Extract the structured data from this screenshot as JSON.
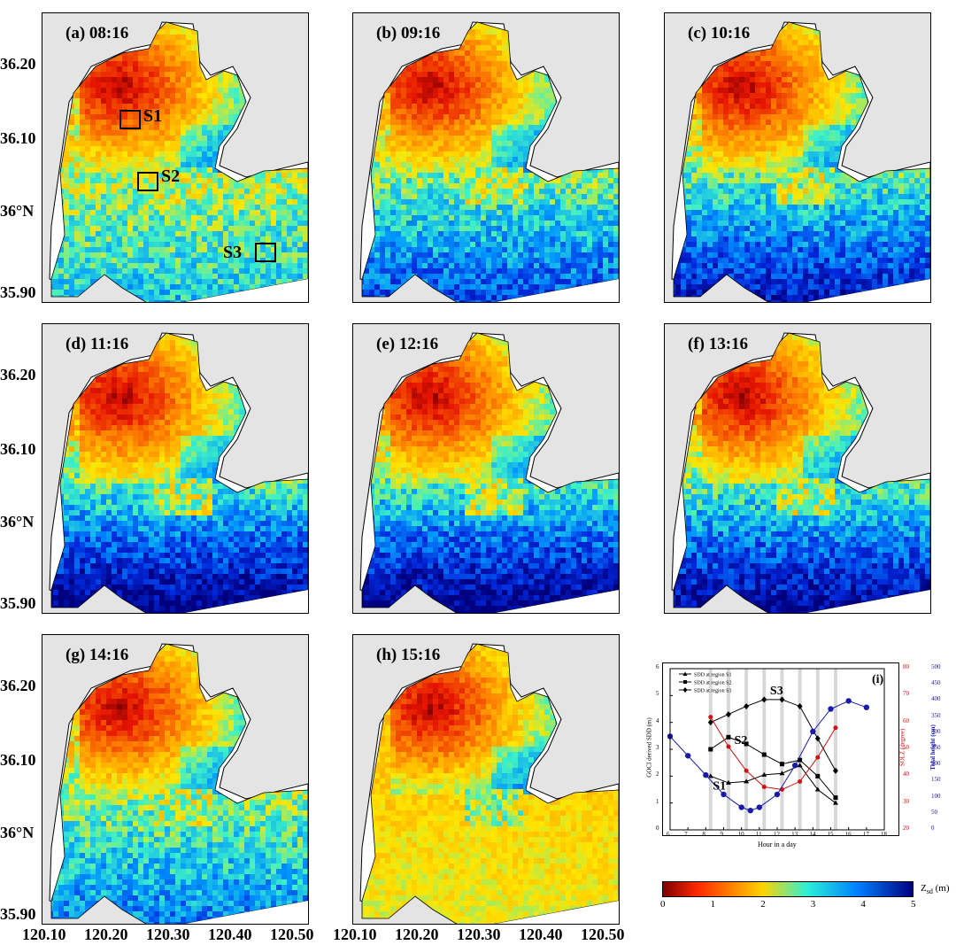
{
  "map_panels": [
    {
      "label": "(a) 08:16",
      "level": 0.3
    },
    {
      "label": "(b) 09:16",
      "level": 0.55
    },
    {
      "label": "(c) 10:16",
      "level": 0.7
    },
    {
      "label": "(d) 11:16",
      "level": 0.85
    },
    {
      "label": "(e) 12:16",
      "level": 0.85
    },
    {
      "label": "(f) 13:16",
      "level": 0.8
    },
    {
      "label": "(g) 14:16",
      "level": 0.45
    },
    {
      "label": "(h) 15:16",
      "level": 0.1
    }
  ],
  "lat_ticks": [
    "36.20",
    "36.10",
    "36°N",
    "35.90"
  ],
  "lon_ticks": [
    "120.10",
    "120.20",
    "120.30",
    "120.40",
    "120.50"
  ],
  "regions": [
    "S1",
    "S2",
    "S3"
  ],
  "colorbar": {
    "ticks": [
      "0",
      "1",
      "2",
      "3",
      "4",
      "5"
    ],
    "title": "Z",
    "title_sub": "sd",
    "title_unit": "(m)",
    "colors": [
      "#7f0000",
      "#ff2a00",
      "#ffd400",
      "#2bf0d8",
      "#007fff",
      "#00007f"
    ]
  },
  "chart_data": {
    "type": "line",
    "panel_label": "(i)",
    "xlabel": "Hour in a day",
    "ylabel_left": "GOCI derived SDD (m)",
    "ylabel_mid": "SOLZ (degree)",
    "ylabel_right": "Tidal height (cm)",
    "xlim": [
      6,
      18
    ],
    "ylim_left": [
      0,
      6
    ],
    "ylim_mid": [
      20,
      80
    ],
    "ylim_right": [
      0,
      500
    ],
    "x_ticks": [
      "6",
      "7",
      "8",
      "9",
      "10",
      "11",
      "12",
      "13",
      "14",
      "15",
      "16",
      "17",
      "18"
    ],
    "y_left_ticks": [
      "0",
      "1",
      "2",
      "3",
      "4",
      "5",
      "6"
    ],
    "y_mid_ticks": [
      "20",
      "30",
      "40",
      "50",
      "60",
      "70",
      "80"
    ],
    "y_right_ticks": [
      "0",
      "50",
      "100",
      "150",
      "200",
      "250",
      "300",
      "350",
      "400",
      "450",
      "500"
    ],
    "legend": [
      "SDD at region S1",
      "SDD at region S2",
      "SDD at region S3"
    ],
    "annotations": [
      "S1",
      "S2",
      "S3"
    ],
    "shaded_hours": [
      8.27,
      9.27,
      10.27,
      11.27,
      12.27,
      13.27,
      14.27,
      15.27
    ],
    "series": [
      {
        "name": "SDD at region S1",
        "axis": "left",
        "color": "#000000",
        "marker": "triangle",
        "x": [
          8.27,
          9.27,
          10.27,
          11.27,
          12.27,
          13.27,
          14.27,
          15.27
        ],
        "y": [
          2.0,
          1.75,
          1.8,
          2.05,
          2.1,
          2.4,
          1.5,
          1.0
        ]
      },
      {
        "name": "SDD at region S2",
        "axis": "left",
        "color": "#000000",
        "marker": "square",
        "x": [
          8.27,
          9.27,
          10.27,
          11.27,
          12.27,
          13.27,
          14.27,
          15.27
        ],
        "y": [
          3.0,
          3.45,
          3.2,
          2.8,
          2.45,
          2.6,
          2.0,
          1.2
        ]
      },
      {
        "name": "",
        "axis": "left",
        "color": "#000000",
        "marker": "diamond",
        "x": [
          8.27,
          9.27,
          10.27,
          11.27,
          12.27,
          13.27,
          14.27,
          15.27
        ],
        "y": [
          4.0,
          4.3,
          4.6,
          4.85,
          4.85,
          4.6,
          3.4,
          2.2
        ]
      },
      {
        "name": "",
        "axis": "mid",
        "color": "#d01010",
        "marker": "circle",
        "x": [
          8.27,
          9.27,
          10.27,
          11.27,
          12.27,
          13.27,
          14.27,
          15.27
        ],
        "y": [
          62,
          51,
          42,
          36,
          35,
          38,
          47,
          58
        ]
      },
      {
        "name": "",
        "axis": "right",
        "color": "#1a1aa8",
        "marker": "circle",
        "x": [
          6,
          7,
          8,
          9,
          10,
          10.5,
          11,
          12,
          13,
          14,
          15,
          16,
          17
        ],
        "y": [
          290,
          230,
          170,
          110,
          70,
          60,
          70,
          110,
          200,
          305,
          375,
          400,
          380
        ]
      }
    ]
  }
}
